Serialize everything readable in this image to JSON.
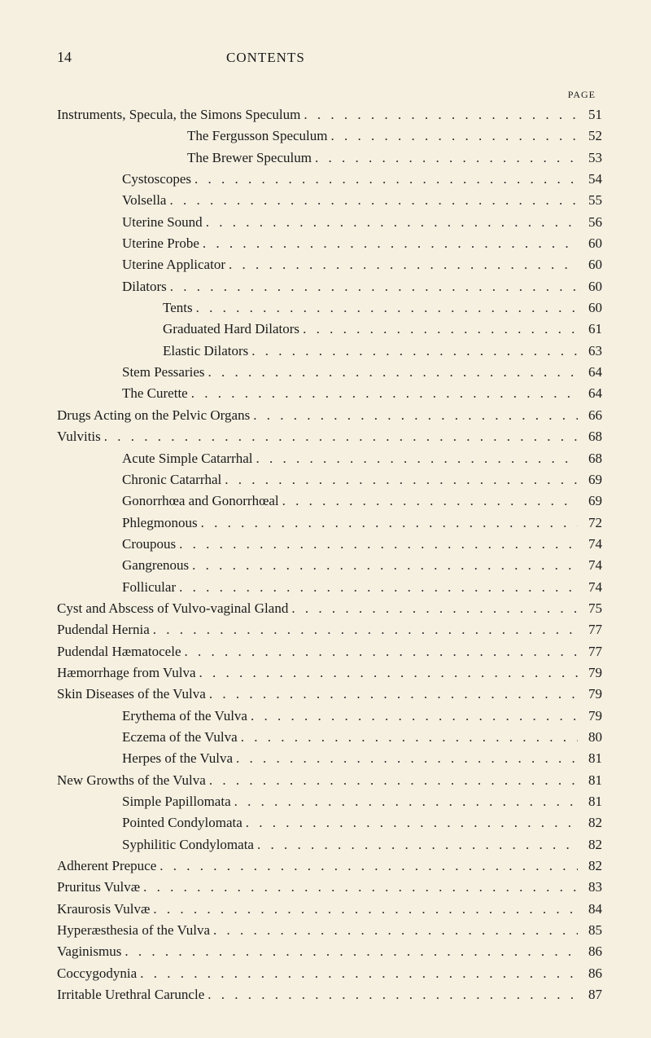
{
  "header": {
    "page_number": "14",
    "title": "CONTENTS",
    "page_label": "PAGE"
  },
  "entries": [
    {
      "label": "Instruments, Specula, the Simons Speculum",
      "page": "51",
      "indent": 0
    },
    {
      "label": "The Fergusson Speculum",
      "page": "52",
      "indent": 3
    },
    {
      "label": "The Brewer Speculum",
      "page": "53",
      "indent": 3
    },
    {
      "label": "Cystoscopes",
      "page": "54",
      "indent": 1
    },
    {
      "label": "Volsella",
      "page": "55",
      "indent": 1
    },
    {
      "label": "Uterine Sound",
      "page": "56",
      "indent": 1
    },
    {
      "label": "Uterine Probe",
      "page": "60",
      "indent": 1
    },
    {
      "label": "Uterine Applicator",
      "page": "60",
      "indent": 1
    },
    {
      "label": "Dilators",
      "page": "60",
      "indent": 1
    },
    {
      "label": "Tents",
      "page": "60",
      "indent": 2
    },
    {
      "label": "Graduated Hard Dilators",
      "page": "61",
      "indent": 2
    },
    {
      "label": "Elastic Dilators",
      "page": "63",
      "indent": 2
    },
    {
      "label": "Stem Pessaries",
      "page": "64",
      "indent": 1
    },
    {
      "label": "The Curette",
      "page": "64",
      "indent": 1
    },
    {
      "label": "Drugs Acting on the Pelvic Organs",
      "page": "66",
      "indent": 0
    },
    {
      "label": "Vulvitis",
      "page": "68",
      "indent": 0
    },
    {
      "label": "Acute Simple Catarrhal",
      "page": "68",
      "indent": 1
    },
    {
      "label": "Chronic Catarrhal",
      "page": "69",
      "indent": 1
    },
    {
      "label": "Gonorrhœa and Gonorrhœal",
      "page": "69",
      "indent": 1
    },
    {
      "label": "Phlegmonous",
      "page": "72",
      "indent": 1
    },
    {
      "label": "Croupous",
      "page": "74",
      "indent": 1
    },
    {
      "label": "Gangrenous",
      "page": "74",
      "indent": 1
    },
    {
      "label": "Follicular",
      "page": "74",
      "indent": 1
    },
    {
      "label": "Cyst and Abscess of Vulvo-vaginal Gland",
      "page": "75",
      "indent": 0
    },
    {
      "label": "Pudendal Hernia",
      "page": "77",
      "indent": 0
    },
    {
      "label": "Pudendal Hæmatocele",
      "page": "77",
      "indent": 0
    },
    {
      "label": "Hæmorrhage from Vulva",
      "page": "79",
      "indent": 0
    },
    {
      "label": "Skin Diseases of the Vulva",
      "page": "79",
      "indent": 0
    },
    {
      "label": "Erythema of the Vulva",
      "page": "79",
      "indent": 1
    },
    {
      "label": "Eczema of the Vulva",
      "page": "80",
      "indent": 1
    },
    {
      "label": "Herpes of the Vulva",
      "page": "81",
      "indent": 1
    },
    {
      "label": "New Growths of the Vulva",
      "page": "81",
      "indent": 0
    },
    {
      "label": "Simple Papillomata",
      "page": "81",
      "indent": 1
    },
    {
      "label": "Pointed Condylomata",
      "page": "82",
      "indent": 1
    },
    {
      "label": "Syphilitic Condylomata",
      "page": "82",
      "indent": 1
    },
    {
      "label": "Adherent Prepuce",
      "page": "82",
      "indent": 0
    },
    {
      "label": "Pruritus Vulvæ",
      "page": "83",
      "indent": 0
    },
    {
      "label": "Kraurosis Vulvæ",
      "page": "84",
      "indent": 0
    },
    {
      "label": "Hyperæsthesia of the Vulva",
      "page": "85",
      "indent": 0
    },
    {
      "label": "Vaginismus",
      "page": "86",
      "indent": 0
    },
    {
      "label": "Coccygodynia",
      "page": "86",
      "indent": 0
    },
    {
      "label": "Irritable Urethral Caruncle",
      "page": "87",
      "indent": 0
    }
  ]
}
